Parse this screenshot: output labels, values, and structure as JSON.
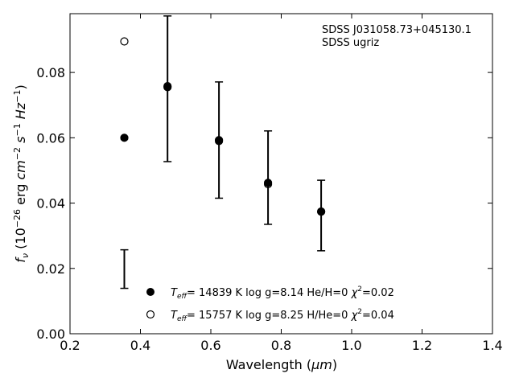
{
  "chart_data": {
    "type": "scatter",
    "title": "",
    "xlabel_main": "Wavelength (",
    "xlabel_unit": "μm",
    "xlabel_close": ")",
    "ylabel": "f_ν (10^-26 erg cm^-2 s^-1 Hz^-1)",
    "xlim": [
      0.2,
      1.4
    ],
    "ylim": [
      0.0,
      0.098
    ],
    "x_ticks": [
      0.2,
      0.4,
      0.6,
      0.8,
      1.0,
      1.2,
      1.4
    ],
    "x_tick_labels": [
      "0.2",
      "0.4",
      "0.6",
      "0.8",
      "1.0",
      "1.2",
      "1.4"
    ],
    "y_ticks": [
      0.0,
      0.02,
      0.04,
      0.06,
      0.08
    ],
    "y_tick_labels": [
      "0.00",
      "0.02",
      "0.04",
      "0.06",
      "0.08"
    ],
    "grid": false,
    "annotations": [
      "SDSS J031058.73+045130.1",
      "SDSS ugriz"
    ],
    "observed": {
      "x": [
        0.3543,
        0.477,
        0.6231,
        0.7625,
        0.9134
      ],
      "center": [
        0.0198,
        0.075,
        0.0593,
        0.0478,
        0.0362
      ],
      "err": [
        0.0059,
        0.0223,
        0.0178,
        0.0143,
        0.0108
      ]
    },
    "series": [
      {
        "label_teff": "T",
        "label_sub": "eff",
        "label_rest": "= 14839 K  log g=8.14  He/H=0  ",
        "label_chi": "χ",
        "label_chi_sup": "2",
        "label_chi_val": "=0.02",
        "marker": "filled",
        "x": [
          0.3543,
          0.477,
          0.6231,
          0.7625,
          0.9134
        ],
        "y": [
          0.06,
          0.0755,
          0.0593,
          0.0462,
          0.0374
        ]
      },
      {
        "label_teff": "T",
        "label_sub": "eff",
        "label_rest": "= 15757 K  log g=8.25  H/He=0  ",
        "label_chi": "χ",
        "label_chi_sup": "2",
        "label_chi_val": "=0.04",
        "marker": "open",
        "x": [
          0.3543,
          0.477,
          0.6231,
          0.7625,
          0.9134
        ],
        "y": [
          0.0895,
          0.0758,
          0.059,
          0.0458,
          0.0374
        ]
      }
    ],
    "legend_position": "lower-center"
  }
}
